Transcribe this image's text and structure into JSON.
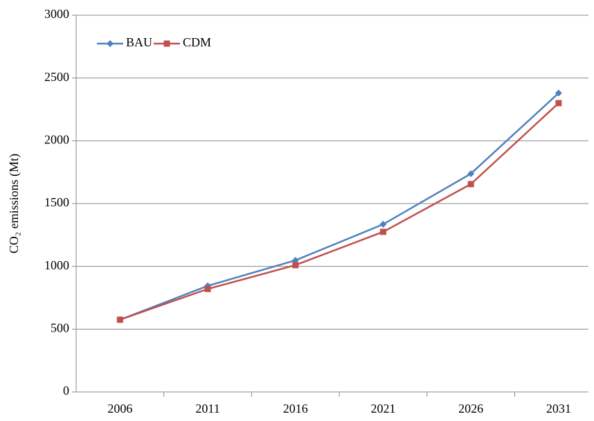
{
  "chart_data": {
    "type": "line",
    "y_label": "CO₂ emissions (Mt)",
    "categories": [
      "2006",
      "2011",
      "2016",
      "2021",
      "2026",
      "2031"
    ],
    "series": [
      {
        "name": "BAU",
        "color": "#4f81bd",
        "values": [
          575,
          845,
          1048,
          1335,
          1738,
          2380
        ]
      },
      {
        "name": "CDM",
        "color": "#c0504d",
        "values": [
          575,
          820,
          1010,
          1275,
          1655,
          2300
        ]
      }
    ],
    "ylim": [
      0,
      3000
    ],
    "yticks": [
      0,
      500,
      1000,
      1500,
      2000,
      2500,
      3000
    ],
    "grid": true,
    "legend": "top-left"
  }
}
